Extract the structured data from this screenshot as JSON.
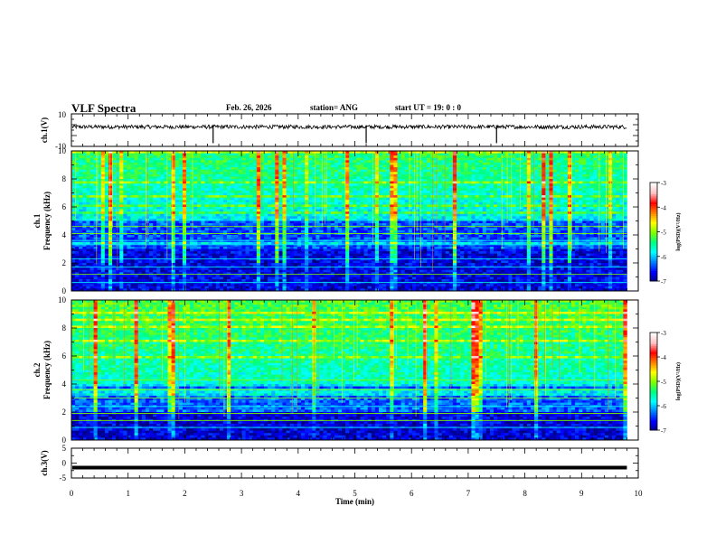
{
  "header": {
    "title": "VLF Spectra",
    "date": "Feb. 26, 2026",
    "station": "station= ANG",
    "start": "start  UT =   19: 0  : 0"
  },
  "colors": {
    "spec_stops": [
      "#000080",
      "#0000ff",
      "#0080ff",
      "#00ffff",
      "#00ff80",
      "#80ff00",
      "#ffff00",
      "#ff8000",
      "#ff0000",
      "#ffc0c0",
      "#ffffff"
    ],
    "trace": "#000000"
  },
  "chart_data": [
    {
      "type": "line",
      "name": "ch1-waveform",
      "ylabel": "ch.1(V)",
      "ylim": [
        -10,
        10
      ],
      "yticks": [
        "10",
        "-10"
      ],
      "baseline": 0,
      "spikes_min": [
        2.5,
        5.2,
        7.5
      ],
      "xlim": [
        0,
        10
      ]
    },
    {
      "type": "heatmap",
      "name": "ch1-spectrogram",
      "ylabel_line1": "ch.1",
      "ylabel_line2": "Frequency (kHz)",
      "ylim": [
        0,
        10
      ],
      "yticks": [
        "0",
        "2",
        "4",
        "6",
        "8",
        "10"
      ],
      "colorbar": {
        "label": "log(PSD)(V²/Hz)",
        "range": [
          -7,
          -3
        ],
        "ticks": [
          "-3",
          "-4",
          "-5",
          "-6",
          "-7"
        ]
      },
      "x_extent_min": 9.8
    },
    {
      "type": "heatmap",
      "name": "ch2-spectrogram",
      "ylabel_line1": "ch.2",
      "ylabel_line2": "Frequency (kHz)",
      "ylim": [
        0,
        10
      ],
      "yticks": [
        "0",
        "2",
        "4",
        "6",
        "8",
        "10"
      ],
      "colorbar": {
        "label": "log(PSD)(V²/Hz)",
        "range": [
          -7,
          -3
        ],
        "ticks": [
          "-3",
          "-4",
          "-5",
          "-6",
          "-7"
        ]
      },
      "x_extent_min": 9.8
    },
    {
      "type": "line",
      "name": "ch3-waveform",
      "ylabel": "ch.3(V)",
      "ylim": [
        -5,
        5
      ],
      "yticks": [
        "5",
        "0",
        "-5"
      ],
      "baseline": -1.5,
      "xlim": [
        0,
        10
      ],
      "xlabel": "Time (min)",
      "xticks": [
        "0",
        "1",
        "2",
        "3",
        "4",
        "5",
        "6",
        "7",
        "8",
        "9",
        "10"
      ]
    }
  ]
}
